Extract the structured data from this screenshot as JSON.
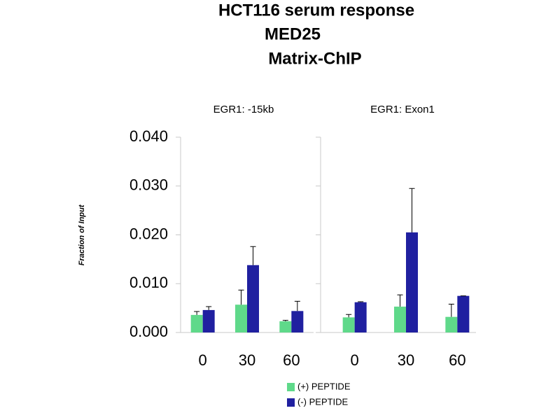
{
  "title": [
    "HCT116 serum response",
    "MED25",
    "Matrix-ChIP"
  ],
  "chart_data": [
    {
      "type": "bar",
      "title": "EGR1: -15kb",
      "ylabel": "Fraction of Input",
      "categories": [
        "0",
        "30",
        "60"
      ],
      "series": [
        {
          "name": "(+) PEPTIDE",
          "color": "#5fd98a",
          "values": [
            0.0036,
            0.0057,
            0.0023
          ],
          "errors": [
            0.0007,
            0.003,
            0.0002
          ]
        },
        {
          "name": "(-) PEPTIDE",
          "color": "#2020a0",
          "values": [
            0.0046,
            0.0138,
            0.0044
          ],
          "errors": [
            0.0007,
            0.0038,
            0.002
          ]
        }
      ],
      "ylim": [
        0,
        0.04
      ],
      "yticks": [
        {
          "value": 0,
          "label": "0.000"
        },
        {
          "value": 0.01,
          "label": "0.010"
        },
        {
          "value": 0.02,
          "label": "0.020"
        },
        {
          "value": 0.03,
          "label": "0.030"
        },
        {
          "value": 0.04,
          "label": "0.040"
        }
      ]
    },
    {
      "type": "bar",
      "title": "EGR1: Exon1",
      "categories": [
        "0",
        "30",
        "60"
      ],
      "series": [
        {
          "name": "(+) PEPTIDE",
          "color": "#5fd98a",
          "values": [
            0.0031,
            0.0053,
            0.0032
          ],
          "errors": [
            0.0006,
            0.0024,
            0.0026
          ]
        },
        {
          "name": "(-) PEPTIDE",
          "color": "#2020a0",
          "values": [
            0.0062,
            0.0205,
            0.0075
          ],
          "errors": [
            0.0001,
            0.009,
            0
          ]
        }
      ],
      "ylim": [
        0,
        0.04
      ]
    }
  ]
}
